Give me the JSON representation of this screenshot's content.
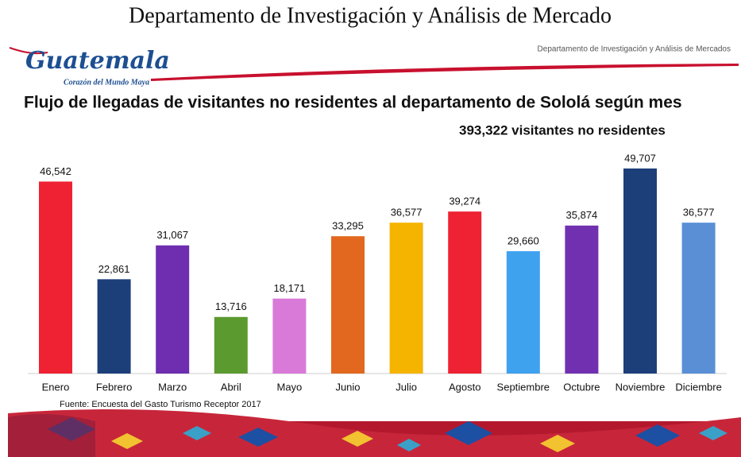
{
  "page_title": "Departamento de Investigación y Análisis de Mercado",
  "slide": {
    "header_note": "Departamento de Investigación y Análisis de Mercados",
    "logo": "Guatemala",
    "logo_tagline": "Corazón del Mundo Maya",
    "source": "Fuente: Encuesta del Gasto Turismo  Receptor  2017"
  },
  "chart_data": {
    "type": "bar",
    "title": "Flujo de llegadas de visitantes no residentes al departamento de Sololá según mes",
    "subtitle": "393,322  visitantes no residentes",
    "categories": [
      "Enero",
      "Febrero",
      "Marzo",
      "Abril",
      "Mayo",
      "Junio",
      "Julio",
      "Agosto",
      "Septiembre",
      "Octubre",
      "Noviembre",
      "Diciembre"
    ],
    "values": [
      46542,
      22861,
      31067,
      13716,
      18171,
      33295,
      36577,
      39274,
      29660,
      35874,
      49707,
      36577
    ],
    "value_labels": [
      "46,542",
      "22,861",
      "31,067",
      "13,716",
      "18,171",
      "33,295",
      "36,577",
      "39,274",
      "29,660",
      "35,874",
      "49,707",
      "36,577"
    ],
    "colors": [
      "#ee2233",
      "#1c3f7a",
      "#6f2db0",
      "#5b9a2f",
      "#d97ad9",
      "#e2681f",
      "#f4b400",
      "#ee2233",
      "#3fa2ef",
      "#7030b0",
      "#1c3f7a",
      "#5a8fd6"
    ]
  }
}
